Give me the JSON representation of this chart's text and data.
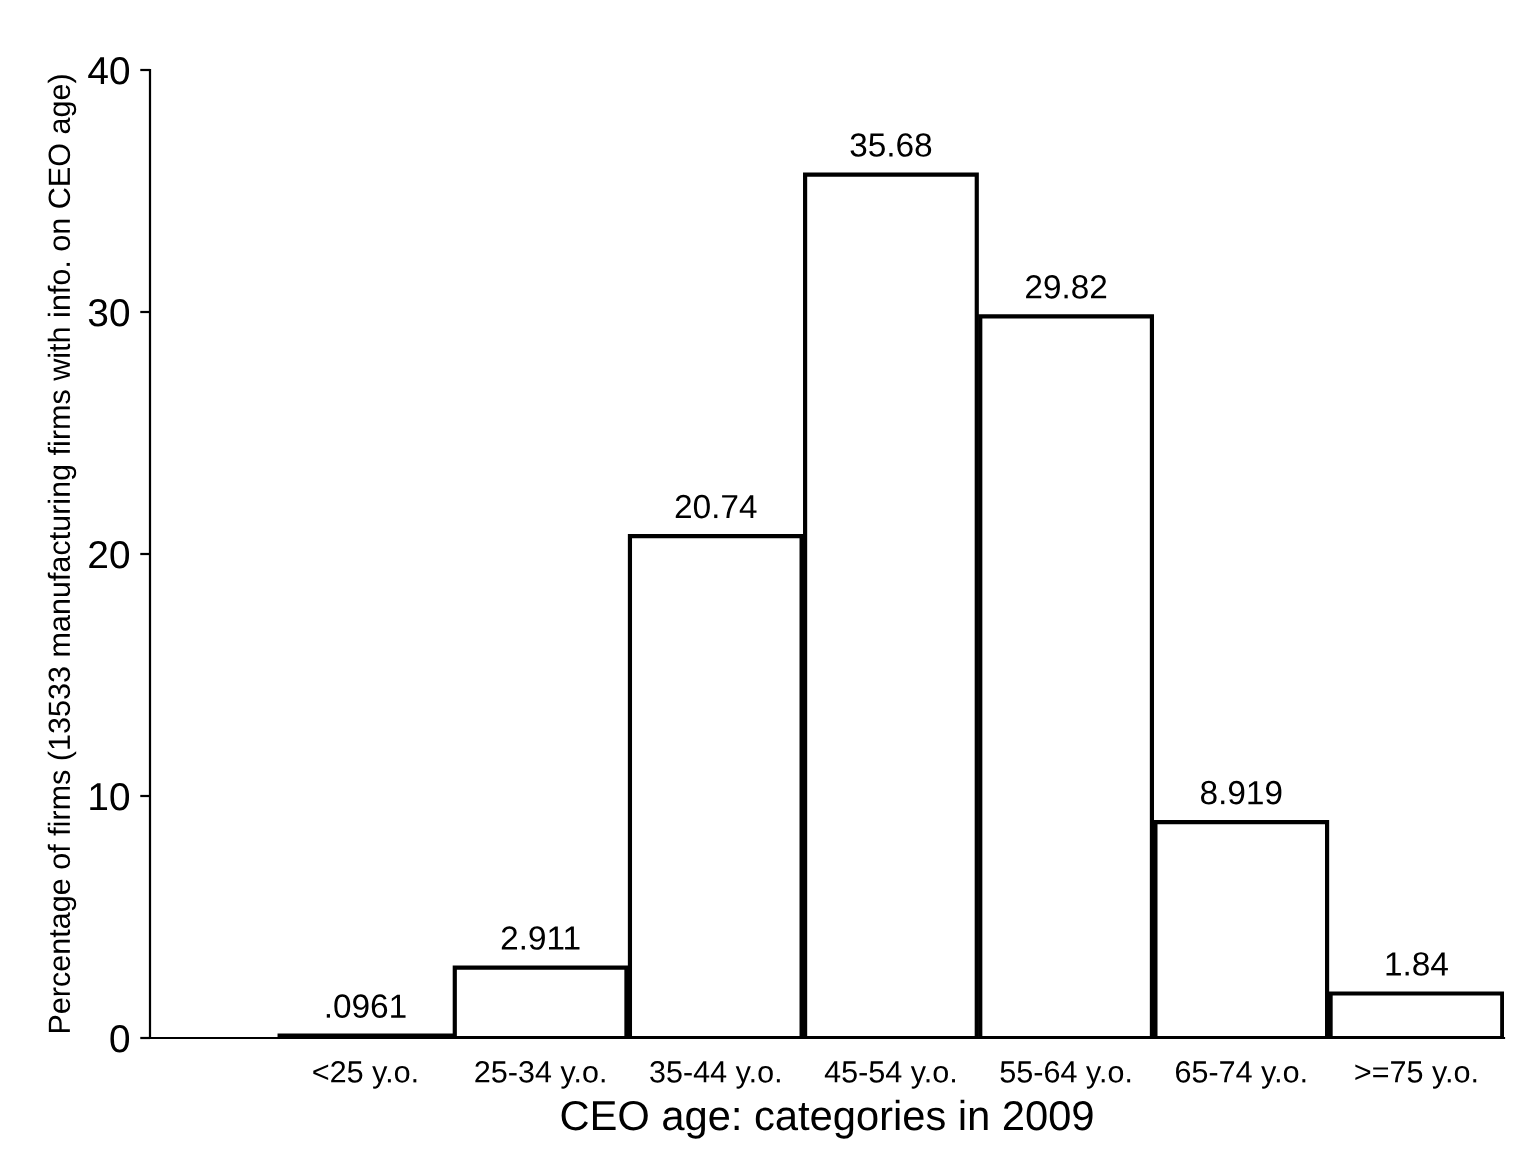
{
  "chart_data": {
    "type": "bar",
    "xlabel": "CEO age: categories in 2009",
    "ylabel": "Percentage of firms (13533 manufacturing firms with info. on CEO age)",
    "categories": [
      "<25 y.o.",
      "25-34 y.o.",
      "35-44 y.o.",
      "45-54 y.o.",
      "55-64 y.o.",
      "65-74 y.o.",
      ">=75 y.o."
    ],
    "values": [
      0.0961,
      2.911,
      20.74,
      35.68,
      29.82,
      8.919,
      1.84
    ],
    "value_labels": [
      ".0961",
      "2.911",
      "20.74",
      "35.68",
      "29.82",
      "8.919",
      "1.84"
    ],
    "color": "#ffffff",
    "ylim": [
      0,
      40
    ],
    "yticks": [
      0,
      10,
      20,
      30,
      40
    ],
    "grid": false,
    "legend": false
  }
}
